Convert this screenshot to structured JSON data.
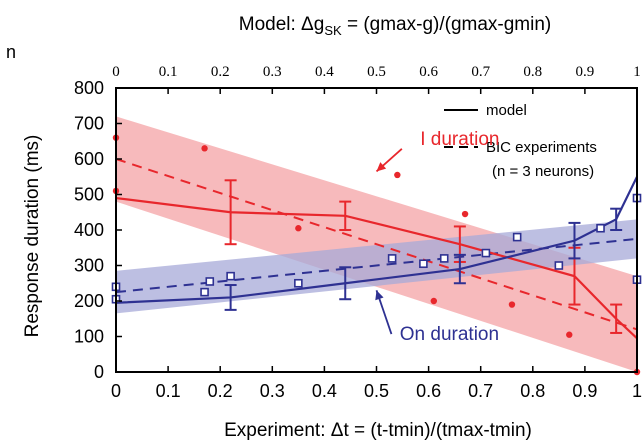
{
  "chart_data": {
    "type": "line",
    "top_axis": {
      "label_main": "Model: Δg",
      "label_sub": "SK",
      "label_rest": " = (gmax-g)/(gmax-gmin)",
      "ticks": [
        "0",
        "0.1",
        "0.2",
        "0.3",
        "0.4",
        "0.5",
        "0.6",
        "0.7",
        "0.8",
        "0.9",
        "1"
      ]
    },
    "xlabel": "Experiment: Δt = (t-tmin)/(tmax-tmin)",
    "ylabel": "Response duration (ms)",
    "edge_label": "n",
    "xlim": [
      0,
      1
    ],
    "ylim": [
      0,
      800
    ],
    "xticks": [
      "0",
      "0.1",
      "0.2",
      "0.3",
      "0.4",
      "0.5",
      "0.6",
      "0.7",
      "0.8",
      "0.9",
      "1"
    ],
    "yticks": [
      "0",
      "100",
      "200",
      "300",
      "400",
      "500",
      "600",
      "700",
      "800"
    ],
    "legend": {
      "position": "top-right",
      "model": "model",
      "bic": "BIC experiments",
      "bic_note": "(n = 3 neurons)"
    },
    "colors": {
      "red": "#e8272c",
      "blue": "#2e3192",
      "red_band": "#f4a3a6",
      "blue_band": "#a7aad8"
    },
    "annotations": [
      {
        "text": "I duration",
        "x": 0.66,
        "y": 640,
        "arrow_to": [
          0.5,
          565
        ],
        "color": "#e8272c"
      },
      {
        "text": "On duration",
        "x": 0.64,
        "y": 90,
        "arrow_to": [
          0.5,
          230
        ],
        "color": "#2e3192"
      }
    ],
    "series": [
      {
        "kind": "model",
        "color": "#e8272c",
        "x": [
          0,
          0.22,
          0.44,
          0.66,
          0.88,
          0.96,
          1.0
        ],
        "y": [
          490,
          450,
          440,
          360,
          270,
          150,
          95
        ],
        "err": [
          0,
          90,
          40,
          50,
          80,
          40,
          0
        ]
      },
      {
        "kind": "model",
        "color": "#2e3192",
        "x": [
          0,
          0.22,
          0.44,
          0.66,
          0.88,
          0.96,
          1.0
        ],
        "y": [
          195,
          210,
          250,
          290,
          370,
          430,
          550
        ],
        "err": [
          0,
          35,
          45,
          40,
          50,
          30,
          0
        ]
      },
      {
        "kind": "fit",
        "color": "#e8272c",
        "x": [
          0,
          1
        ],
        "y": [
          600,
          120
        ]
      },
      {
        "kind": "fit",
        "color": "#2e3192",
        "x": [
          0,
          1
        ],
        "y": [
          225,
          375
        ]
      },
      {
        "kind": "band",
        "color": "#f4a3a6",
        "x": [
          0,
          1
        ],
        "upper": [
          720,
          270
        ],
        "lower": [
          480,
          0
        ]
      },
      {
        "kind": "band",
        "color": "#a7aad8",
        "x": [
          0,
          1
        ],
        "upper": [
          285,
          430
        ],
        "lower": [
          165,
          320
        ]
      },
      {
        "kind": "points",
        "color": "#e8272c",
        "marker": "dot",
        "x": [
          0,
          0,
          0.17,
          0.35,
          0.54,
          0.61,
          0.67,
          0.76,
          0.87,
          1.0
        ],
        "y": [
          660,
          510,
          630,
          405,
          555,
          200,
          445,
          190,
          105,
          0
        ]
      },
      {
        "kind": "points",
        "color": "#2e3192",
        "marker": "square",
        "x": [
          0,
          0,
          0.17,
          0.18,
          0.22,
          0.35,
          0.53,
          0.59,
          0.63,
          0.71,
          0.77,
          0.85,
          0.93,
          1.0,
          1.0
        ],
        "y": [
          240,
          205,
          225,
          255,
          270,
          250,
          320,
          305,
          320,
          335,
          380,
          300,
          405,
          490,
          260
        ]
      }
    ]
  }
}
